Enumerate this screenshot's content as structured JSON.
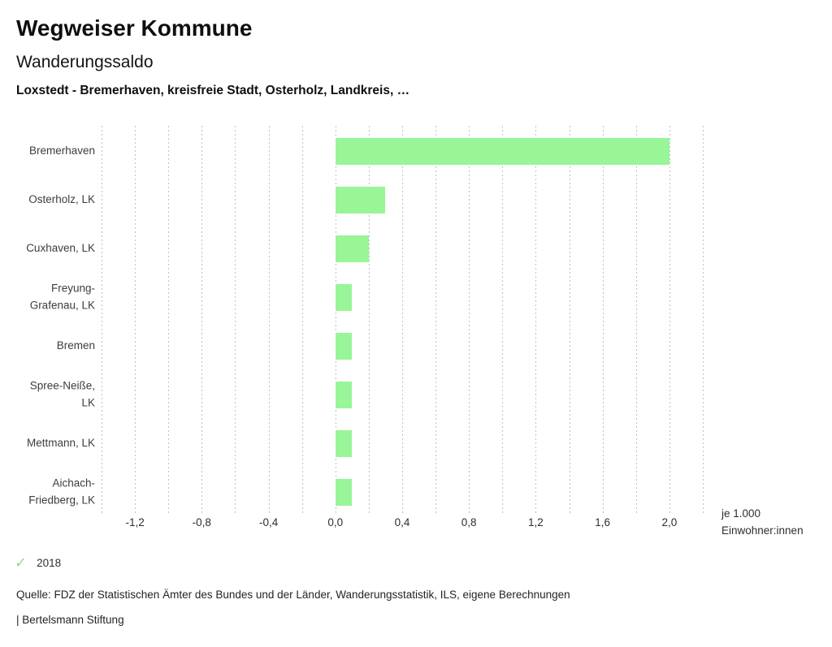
{
  "header": {
    "title": "Wegweiser Kommune",
    "subtitle": "Wanderungssaldo",
    "comparison": "Loxstedt - Bremerhaven, kreisfreie Stadt, Osterholz, Landkreis, …"
  },
  "chart_data": {
    "type": "bar",
    "orientation": "horizontal",
    "title": "Wanderungssaldo",
    "categories": [
      "Bremerhaven",
      "Osterholz, LK",
      "Cuxhaven, LK",
      "Freyung-Grafenau, LK",
      "Bremen",
      "Spree-Neiße, LK",
      "Mettmann, LK",
      "Aichach-Friedberg, LK"
    ],
    "label_lines": [
      [
        "Bremerhaven"
      ],
      [
        "Osterholz, LK"
      ],
      [
        "Cuxhaven, LK"
      ],
      [
        "Freyung-",
        "Grafenau, LK"
      ],
      [
        "Bremen"
      ],
      [
        "Spree-Neiße,",
        "LK"
      ],
      [
        "Mettmann, LK"
      ],
      [
        "Aichach-",
        "Friedberg, LK"
      ]
    ],
    "values": [
      2.0,
      0.3,
      0.2,
      0.1,
      0.1,
      0.1,
      0.1,
      0.1
    ],
    "xlim": [
      -1.4,
      2.2
    ],
    "grid_step": 0.2,
    "grid_style": "dotted",
    "tick_values": [
      -1.2,
      -0.8,
      -0.4,
      0.0,
      0.4,
      0.8,
      1.2,
      1.6,
      2.0
    ],
    "tick_labels": [
      "-1,2",
      "-0,8",
      "-0,4",
      "0,0",
      "0,4",
      "0,8",
      "1,2",
      "1,6",
      "2,0"
    ],
    "xlabel": "je 1.000 Einwohner:innen",
    "xlabel_lines": [
      "je 1.000",
      "Einwohner:innen"
    ],
    "legend": [
      {
        "label": "2018",
        "marker": "check-icon",
        "checked": true
      }
    ],
    "legend_position": "bottom-left",
    "colors": {
      "bar": "#98f598",
      "check": "#8ce08c",
      "gridline": "#c1c1c1"
    }
  },
  "icons": {
    "check": "✓"
  },
  "footer": {
    "source": "Quelle: FDZ der Statistischen Ämter des Bundes und der Länder, Wanderungsstatistik, ILS, eigene Berechnungen",
    "attribution": "| Bertelsmann Stiftung"
  }
}
